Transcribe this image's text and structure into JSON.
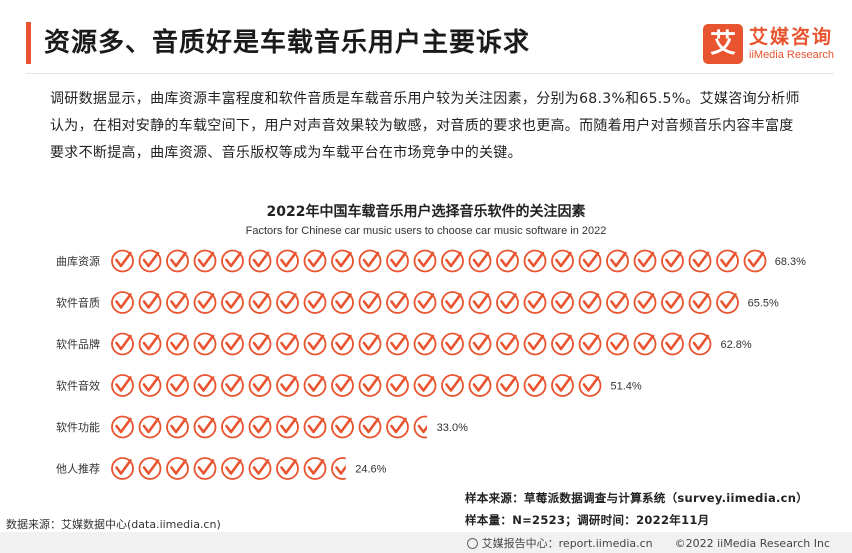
{
  "header": {
    "title": "资源多、音质好是车载音乐用户主要诉求",
    "brand_name_cn": "艾媒咨询",
    "brand_name_en": "iiMedia Research",
    "brand_logo_char": "艾",
    "accent_color": "#e8542f"
  },
  "intro": {
    "text": "调研数据显示，曲库资源丰富程度和软件音质是车载音乐用户较为关注因素，分别为68.3%和65.5%。艾媒咨询分析师认为，在相对安静的车载空间下，用户对声音效果较为敏感，对音质的要求也更高。而随着用户对音频音乐内容丰富度要求不断提高，曲库资源、音乐版权等成为车载平台在市场竞争中的关键。"
  },
  "chart_data": {
    "type": "bar",
    "title": "2022年中国车载音乐用户选择音乐软件的关注因素",
    "subtitle": "Factors for Chinese car music users to choose car music software in 2022",
    "categories": [
      "曲库资源",
      "软件音质",
      "软件品牌",
      "软件音效",
      "软件功能",
      "他人推荐"
    ],
    "values": [
      68.3,
      65.5,
      62.8,
      51.4,
      33.0,
      24.6
    ],
    "value_labels": [
      "68.3%",
      "65.5%",
      "62.8%",
      "51.4%",
      "33.0%",
      "24.6%"
    ],
    "unit": "%",
    "icon": "checkmark-circle-icon",
    "icon_color": "#e8542f",
    "grid": false,
    "legend": "none"
  },
  "sources": {
    "left": "数据来源：艾媒数据中心(data.iimedia.cn)",
    "right_line1": "样本来源：草莓派数据调查与计算系统（survey.iimedia.cn）",
    "right_line2": "样本量：N=2523；调研时间：2022年11月"
  },
  "footer": {
    "text": "艾媒报告中心：report.iimedia.cn　　©2022  iiMedia Research  Inc"
  }
}
